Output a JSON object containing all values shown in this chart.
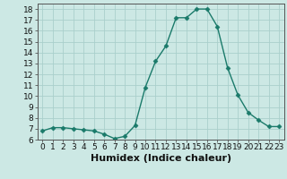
{
  "x": [
    0,
    1,
    2,
    3,
    4,
    5,
    6,
    7,
    8,
    9,
    10,
    11,
    12,
    13,
    14,
    15,
    16,
    17,
    18,
    19,
    20,
    21,
    22,
    23
  ],
  "y": [
    6.8,
    7.1,
    7.1,
    7.0,
    6.9,
    6.8,
    6.5,
    6.1,
    6.3,
    7.3,
    10.8,
    13.2,
    14.6,
    17.2,
    17.2,
    18.0,
    18.0,
    16.4,
    12.6,
    10.1,
    8.5,
    7.8,
    7.2,
    7.2
  ],
  "line_color": "#1a7a6a",
  "marker": "D",
  "marker_size": 2.5,
  "line_width": 1.0,
  "background_color": "#cce8e4",
  "grid_color": "#aacfcc",
  "xlabel": "Humidex (Indice chaleur)",
  "ylim": [
    6,
    18.5
  ],
  "xlim": [
    -0.5,
    23.5
  ],
  "yticks": [
    6,
    7,
    8,
    9,
    10,
    11,
    12,
    13,
    14,
    15,
    16,
    17,
    18
  ],
  "xticks": [
    0,
    1,
    2,
    3,
    4,
    5,
    6,
    7,
    8,
    9,
    10,
    11,
    12,
    13,
    14,
    15,
    16,
    17,
    18,
    19,
    20,
    21,
    22,
    23
  ],
  "xlabel_fontsize": 8,
  "tick_fontsize": 6.5,
  "spine_color": "#555555"
}
